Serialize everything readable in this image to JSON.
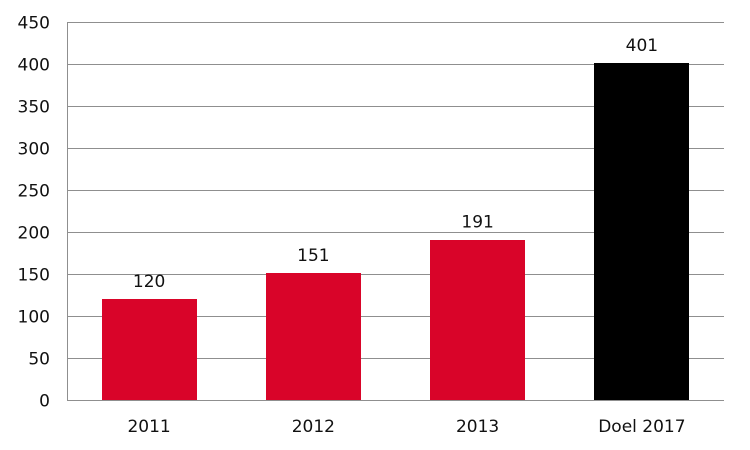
{
  "chart_data": {
    "type": "bar",
    "categories": [
      "2011",
      "2012",
      "2013",
      "Doel 2017"
    ],
    "values": [
      120,
      151,
      191,
      401
    ],
    "data_labels": [
      "120",
      "151",
      "191",
      "401"
    ],
    "ylim": [
      0,
      450
    ],
    "yticks": [
      0,
      50,
      100,
      150,
      200,
      250,
      300,
      350,
      400,
      450
    ],
    "title": "",
    "xlabel": "",
    "ylabel": "",
    "grid": true,
    "legend": "none",
    "bar_colors": [
      "#d90429",
      "#d90429",
      "#d90429",
      "#000000"
    ]
  }
}
